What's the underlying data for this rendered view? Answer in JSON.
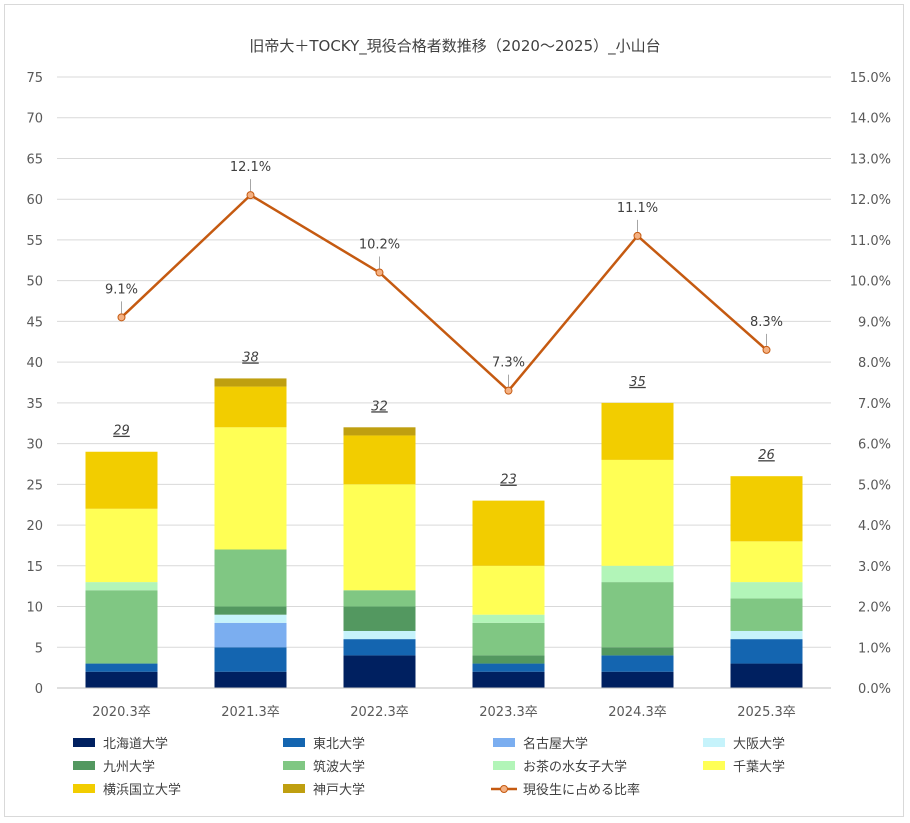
{
  "chart_data": {
    "type": "bar",
    "stacked": true,
    "title": "旧帝大＋TOCKY_現役合格者数推移（2020～2025）_小山台",
    "categories": [
      "2020.3卒",
      "2021.3卒",
      "2022.3卒",
      "2023.3卒",
      "2024.3卒",
      "2025.3卒"
    ],
    "ylim": [
      0,
      75
    ],
    "y_ticks": [
      "0",
      "5",
      "10",
      "15",
      "20",
      "25",
      "30",
      "35",
      "40",
      "45",
      "50",
      "55",
      "60",
      "65",
      "70",
      "75"
    ],
    "y2lim": [
      0,
      15
    ],
    "y2_ticks": [
      "0.0%",
      "1.0%",
      "2.0%",
      "3.0%",
      "4.0%",
      "5.0%",
      "6.0%",
      "7.0%",
      "8.0%",
      "9.0%",
      "10.0%",
      "11.0%",
      "12.0%",
      "13.0%",
      "14.0%",
      "15.0%"
    ],
    "grid": true,
    "legend_position": "bottom",
    "series": [
      {
        "name": "北海道大学",
        "color": "#002060",
        "values": [
          2,
          2,
          4,
          2,
          2,
          3
        ]
      },
      {
        "name": "東北大学",
        "color": "#1465b0",
        "values": [
          1,
          3,
          2,
          1,
          2,
          3
        ]
      },
      {
        "name": "名古屋大学",
        "color": "#7baef0",
        "values": [
          0,
          3,
          0,
          0,
          0,
          0
        ]
      },
      {
        "name": "大阪大学",
        "color": "#c6f3fb",
        "values": [
          0,
          1,
          1,
          0,
          0,
          1
        ]
      },
      {
        "name": "九州大学",
        "color": "#539860",
        "values": [
          0,
          1,
          3,
          1,
          1,
          0
        ]
      },
      {
        "name": "筑波大学",
        "color": "#80c783",
        "values": [
          9,
          7,
          2,
          4,
          8,
          4
        ]
      },
      {
        "name": "お茶の水女子大学",
        "color": "#b2f5b8",
        "values": [
          1,
          0,
          0,
          1,
          2,
          2
        ]
      },
      {
        "name": "千葉大学",
        "color": "#ffff55",
        "values": [
          9,
          15,
          13,
          6,
          13,
          5
        ]
      },
      {
        "name": "横浜国立大学",
        "color": "#f2cd00",
        "values": [
          7,
          5,
          6,
          8,
          7,
          8
        ]
      },
      {
        "name": "神戸大学",
        "color": "#bf9f10",
        "values": [
          0,
          1,
          1,
          0,
          0,
          0
        ]
      }
    ],
    "totals": [
      "29",
      "38",
      "32",
      "23",
      "35",
      "26"
    ],
    "line_series": {
      "name": "現役生に占める比率",
      "color": "#c55a11",
      "marker_fill": "#f4b183",
      "axis": "right",
      "values": [
        9.1,
        12.1,
        10.2,
        7.3,
        11.1,
        8.3
      ],
      "labels": [
        "9.1%",
        "12.1%",
        "10.2%",
        "7.3%",
        "11.1%",
        "8.3%"
      ]
    }
  }
}
